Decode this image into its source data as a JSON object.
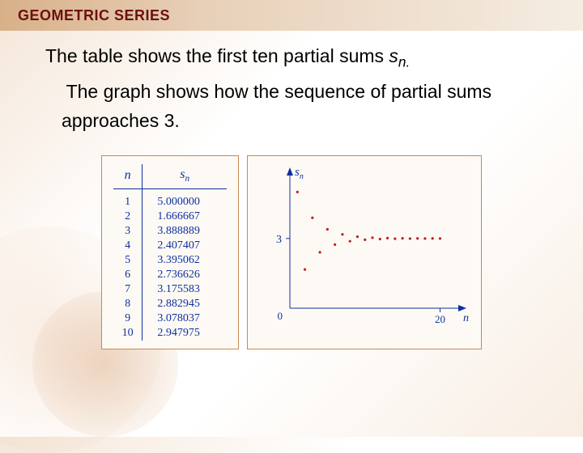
{
  "header": {
    "title": "GEOMETRIC SERIES"
  },
  "body": {
    "line1_a": "The table shows the first ten partial sums ",
    "line1_var": "s",
    "line1_sub": "n.",
    "line2": "The graph shows how the sequence of partial sums approaches 3."
  },
  "table": {
    "col1_header": "n",
    "col2_header_var": "s",
    "col2_header_sub": "n",
    "rows": [
      {
        "n": "1",
        "s": "5.000000"
      },
      {
        "n": "2",
        "s": "1.666667"
      },
      {
        "n": "3",
        "s": "3.888889"
      },
      {
        "n": "4",
        "s": "2.407407"
      },
      {
        "n": "5",
        "s": "3.395062"
      },
      {
        "n": "6",
        "s": "2.736626"
      },
      {
        "n": "7",
        "s": "3.175583"
      },
      {
        "n": "8",
        "s": "2.882945"
      },
      {
        "n": "9",
        "s": "3.078037"
      },
      {
        "n": "10",
        "s": "2.947975"
      }
    ]
  },
  "chart": {
    "type": "scatter",
    "y_axis_label_var": "s",
    "y_axis_label_sub": "n",
    "x_axis_label": "n",
    "y_tick_label": "3",
    "x_tick_label": "20",
    "origin_label": "0",
    "xlim": [
      0,
      22
    ],
    "ylim": [
      0,
      5.5
    ],
    "y_tick_value": 3,
    "x_tick_value": 20,
    "marker_color": "#c02020",
    "marker_radius": 1.6,
    "axis_color": "#1030a0",
    "label_color": "#1030a0",
    "background_color": "#fdfaf5",
    "points": [
      {
        "x": 1,
        "y": 5.0
      },
      {
        "x": 2,
        "y": 1.666667
      },
      {
        "x": 3,
        "y": 3.888889
      },
      {
        "x": 4,
        "y": 2.407407
      },
      {
        "x": 5,
        "y": 3.395062
      },
      {
        "x": 6,
        "y": 2.736626
      },
      {
        "x": 7,
        "y": 3.175583
      },
      {
        "x": 8,
        "y": 2.882945
      },
      {
        "x": 9,
        "y": 3.078037
      },
      {
        "x": 10,
        "y": 2.947975
      },
      {
        "x": 11,
        "y": 3.034683
      },
      {
        "x": 12,
        "y": 2.976878
      },
      {
        "x": 13,
        "y": 3.015415
      },
      {
        "x": 14,
        "y": 2.989723
      },
      {
        "x": 15,
        "y": 3.006851
      },
      {
        "x": 16,
        "y": 2.995433
      },
      {
        "x": 17,
        "y": 3.003045
      },
      {
        "x": 18,
        "y": 2.99797
      },
      {
        "x": 19,
        "y": 3.001353
      },
      {
        "x": 20,
        "y": 2.999098
      }
    ]
  }
}
